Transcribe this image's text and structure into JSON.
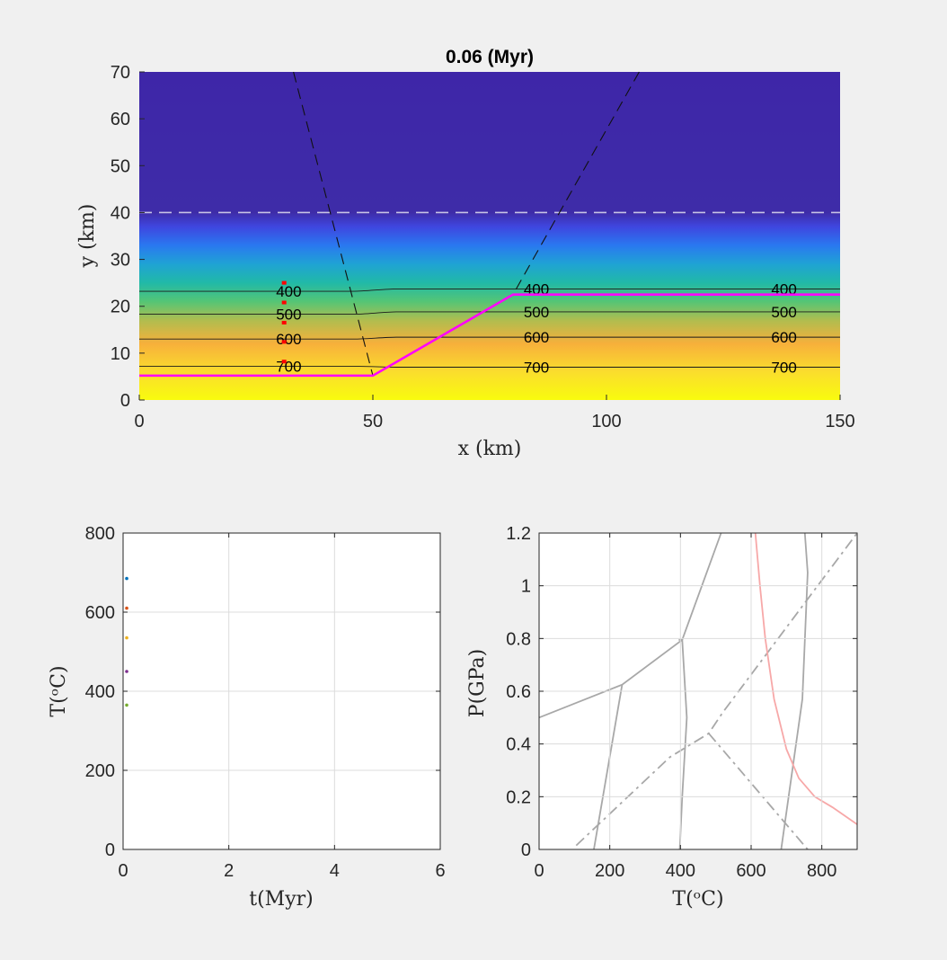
{
  "chart_data": [
    {
      "type": "heatmap",
      "title": "0.06 (Myr)",
      "xlabel": "x (km)",
      "ylabel": "y (km)",
      "xlim": [
        0,
        150
      ],
      "ylim": [
        0,
        70
      ],
      "xticks": [
        "0",
        "50",
        "100",
        "150"
      ],
      "yticks": [
        "0",
        "10",
        "20",
        "30",
        "40",
        "50",
        "60",
        "70"
      ],
      "gradient": [
        {
          "y": 0,
          "color": "#f9fb0e"
        },
        {
          "y": 6,
          "color": "#fadd2d"
        },
        {
          "y": 12,
          "color": "#f7b03b"
        },
        {
          "y": 17,
          "color": "#b0bd4f"
        },
        {
          "y": 21,
          "color": "#55c575"
        },
        {
          "y": 25,
          "color": "#21b9a7"
        },
        {
          "y": 29,
          "color": "#1fa3d4"
        },
        {
          "y": 33,
          "color": "#2a78f0"
        },
        {
          "y": 37,
          "color": "#3f46df"
        },
        {
          "y": 40,
          "color": "#3e2ca8"
        },
        {
          "y": 70,
          "color": "#3e26a8"
        }
      ],
      "contours": [
        {
          "label": "400",
          "y_left": 23.2,
          "y_right": 23.7,
          "label_x": [
            32,
            85,
            138
          ]
        },
        {
          "label": "500",
          "y_left": 18.3,
          "y_right": 18.8,
          "label_x": [
            32,
            85,
            138
          ]
        },
        {
          "label": "600",
          "y_left": 13.0,
          "y_right": 13.4,
          "label_x": [
            32,
            85,
            138
          ]
        },
        {
          "label": "700",
          "y_left": 7.2,
          "y_right": 7.0,
          "label_x": [
            32,
            85,
            138
          ]
        }
      ],
      "boundary": {
        "color": "#ff00ff",
        "x": [
          0,
          50,
          80,
          150
        ],
        "y": [
          5.2,
          5.2,
          22.5,
          22.5
        ]
      },
      "dashed_lines": [
        {
          "x": [
            33,
            50
          ],
          "y": [
            70,
            5.2
          ]
        },
        {
          "x": [
            107,
            80
          ],
          "y": [
            70,
            22.5
          ]
        }
      ],
      "reference_line": {
        "y": 40,
        "color": "#c7c4e6"
      },
      "markers": {
        "x": 31,
        "y": [
          25,
          20.8,
          16.5,
          12.4,
          8.2
        ],
        "color": "#ff0000"
      }
    },
    {
      "type": "scatter",
      "xlabel": "t(Myr)",
      "ylabel": "T(ᵒC)",
      "xlim": [
        0,
        6
      ],
      "ylim": [
        0,
        800
      ],
      "xticks": [
        "0",
        "2",
        "4",
        "6"
      ],
      "yticks": [
        "0",
        "200",
        "400",
        "600",
        "800"
      ],
      "grid": true,
      "series": [
        {
          "x": [
            0.06
          ],
          "y": [
            685
          ],
          "color": "#0072bd"
        },
        {
          "x": [
            0.06
          ],
          "y": [
            610
          ],
          "color": "#d95319"
        },
        {
          "x": [
            0.06
          ],
          "y": [
            535
          ],
          "color": "#edb120"
        },
        {
          "x": [
            0.06
          ],
          "y": [
            450
          ],
          "color": "#7e2f8e"
        },
        {
          "x": [
            0.06
          ],
          "y": [
            365
          ],
          "color": "#77ac30"
        }
      ]
    },
    {
      "type": "line",
      "xlabel": "T(ᵒC)",
      "ylabel": "P(GPa)",
      "xlim": [
        0,
        900
      ],
      "ylim": [
        0,
        1.2
      ],
      "xticks": [
        "0",
        "200",
        "400",
        "600",
        "800"
      ],
      "yticks": [
        "0",
        "0.2",
        "0.4",
        "0.6",
        "0.8",
        "1",
        "1.2"
      ],
      "grid": true,
      "series": [
        {
          "style": "solid",
          "color": "#a8a8a8",
          "x": [
            0,
            235,
            405,
            515
          ],
          "y": [
            0.5,
            0.625,
            0.795,
            1.2
          ]
        },
        {
          "style": "solid",
          "color": "#a8a8a8",
          "x": [
            155,
            235
          ],
          "y": [
            0,
            0.625
          ]
        },
        {
          "style": "solid",
          "color": "#a8a8a8",
          "x": [
            398,
            405,
            418,
            405,
            395
          ],
          "y": [
            0,
            0.2,
            0.5,
            0.795,
            0.795
          ]
        },
        {
          "style": "solid",
          "color": "#a8a8a8",
          "x": [
            685,
            745,
            760,
            752
          ],
          "y": [
            0,
            0.57,
            1.05,
            1.2
          ]
        },
        {
          "style": "dashdot",
          "color": "#a8a8a8",
          "x": [
            105,
            370,
            480,
            520,
            900
          ],
          "y": [
            0.015,
            0.35,
            0.44,
            0.52,
            1.2
          ]
        },
        {
          "style": "dashdot",
          "color": "#a8a8a8",
          "x": [
            480,
            760
          ],
          "y": [
            0.44,
            0
          ]
        },
        {
          "style": "solid",
          "color": "#f7a8a8",
          "x": [
            612,
            625,
            640,
            665,
            700,
            735,
            780,
            830,
            900
          ],
          "y": [
            1.2,
            1.0,
            0.8,
            0.57,
            0.38,
            0.27,
            0.2,
            0.16,
            0.095
          ]
        }
      ]
    }
  ]
}
